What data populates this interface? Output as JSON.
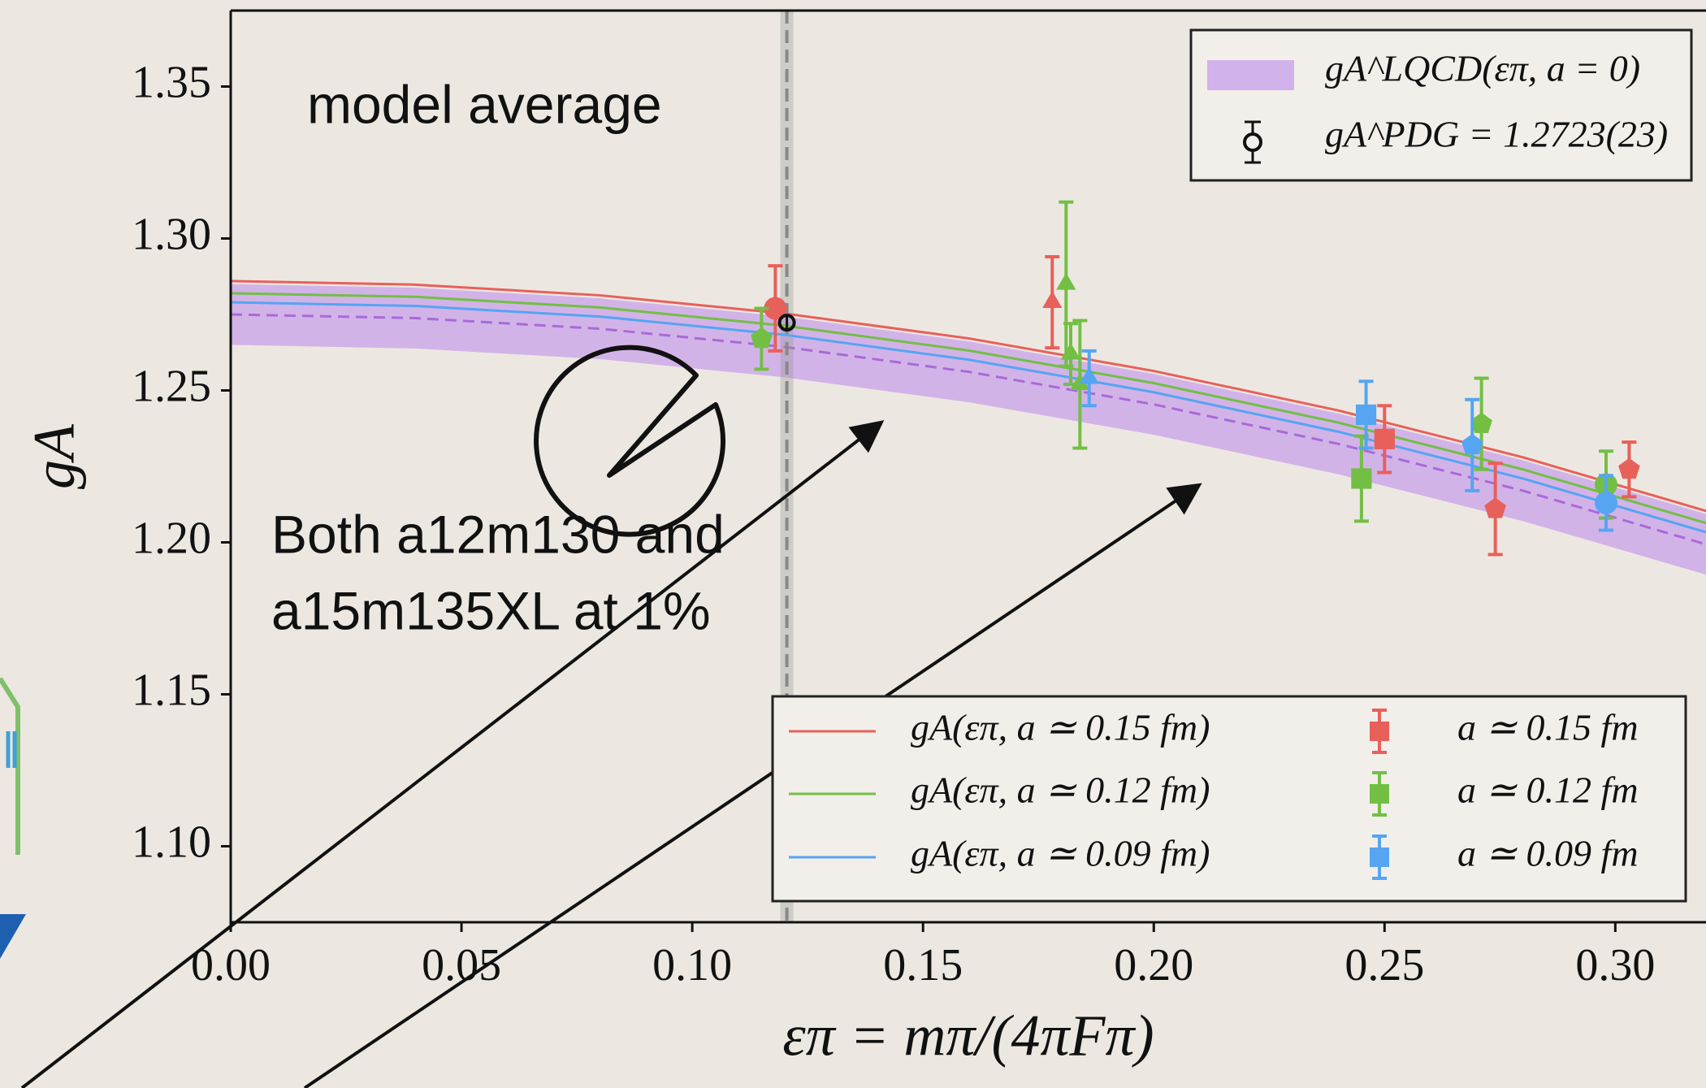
{
  "chart_data": {
    "type": "errorbar",
    "x_label": "επ = mπ/(4πFπ)",
    "y_label": "gA",
    "annotations": [
      "model average",
      "Both a12m130 and",
      "a15m135XL at 1%"
    ],
    "xlim": [
      0,
      0.32
    ],
    "ylim": [
      1.075,
      1.375
    ],
    "xticks": [
      {
        "value": 0,
        "label": "0.00"
      },
      0.05,
      {
        "value": 0.1,
        "label": "0.10"
      },
      0.15,
      {
        "value": 0.2,
        "label": "0.20"
      },
      0.25,
      {
        "value": 0.3,
        "label": "0.30"
      }
    ],
    "yticks": [
      {
        "value": 1.1,
        "label": "1.10"
      },
      1.15,
      {
        "value": 1.2,
        "label": "1.20"
      },
      1.25,
      {
        "value": 1.3,
        "label": "1.30"
      },
      1.35
    ],
    "band": {
      "name": "gA^LQCD(επ, a = 0)",
      "color": "#c9a2ea",
      "x": [
        0,
        0.04,
        0.08,
        0.12,
        0.16,
        0.2,
        0.24,
        0.28,
        0.32
      ],
      "center": [
        1.275,
        1.2738,
        1.2703,
        1.2643,
        1.2561,
        1.2454,
        1.2324,
        1.217,
        1.1992
      ],
      "lower": [
        1.265,
        1.2638,
        1.2603,
        1.2543,
        1.2461,
        1.2354,
        1.2224,
        1.207,
        1.1892
      ],
      "upper": [
        1.285,
        1.2838,
        1.2803,
        1.2743,
        1.2661,
        1.2554,
        1.2424,
        1.227,
        1.2092
      ]
    },
    "pdg": {
      "name": "gA^PDG = 1.2723(23)",
      "x": 0.1205,
      "value": 1.2723,
      "error": 0.0023
    },
    "curves": [
      {
        "name": "gA(επ, a ≃ 0.15 fm)",
        "color": "#e8605a",
        "x": [
          0,
          0.04,
          0.08,
          0.12,
          0.16,
          0.2,
          0.24,
          0.28,
          0.32
        ],
        "values": [
          1.286,
          1.2848,
          1.2813,
          1.2753,
          1.2671,
          1.2564,
          1.2434,
          1.228,
          1.2102
        ]
      },
      {
        "name": "gA(επ, a ≃ 0.12 fm)",
        "color": "#72bf44",
        "x": [
          0,
          0.04,
          0.08,
          0.12,
          0.16,
          0.2,
          0.24,
          0.28,
          0.32
        ],
        "values": [
          1.282,
          1.2808,
          1.2773,
          1.2713,
          1.2631,
          1.2524,
          1.2394,
          1.224,
          1.2062
        ]
      },
      {
        "name": "gA(επ, a ≃ 0.09 fm)",
        "color": "#55a5f2",
        "x": [
          0,
          0.04,
          0.08,
          0.12,
          0.16,
          0.2,
          0.24,
          0.28,
          0.32
        ],
        "values": [
          1.279,
          1.2778,
          1.2743,
          1.2683,
          1.2601,
          1.2494,
          1.2364,
          1.221,
          1.2032
        ]
      }
    ],
    "series": [
      {
        "name": "a ≃ 0.15 fm",
        "color": "#e8605a",
        "x": [
          0.118,
          0.178,
          0.25,
          0.274,
          0.303
        ],
        "values": [
          1.277,
          1.279,
          1.234,
          1.211,
          1.224
        ],
        "errors": [
          0.014,
          0.015,
          0.011,
          0.015,
          0.009
        ],
        "markers": [
          "circle",
          "triangle",
          "square",
          "pentagon",
          "pentagon"
        ]
      },
      {
        "name": "a ≃ 0.12 fm",
        "color": "#72bf44",
        "x": [
          0.115,
          0.181,
          0.182,
          0.184,
          0.245,
          0.271,
          0.298
        ],
        "values": [
          1.267,
          1.285,
          1.262,
          1.252,
          1.221,
          1.239,
          1.219
        ],
        "errors": [
          0.01,
          0.027,
          0.01,
          0.021,
          0.014,
          0.015,
          0.011
        ],
        "markers": [
          "pentagon",
          "triangle",
          "triangle",
          "triangle",
          "square",
          "pentagon",
          "circle"
        ]
      },
      {
        "name": "a ≃ 0.09 fm",
        "color": "#55a5f2",
        "x": [
          0.186,
          0.246,
          0.269,
          0.298
        ],
        "values": [
          1.254,
          1.242,
          1.232,
          1.213
        ],
        "errors": [
          0.009,
          0.011,
          0.015,
          0.009
        ],
        "markers": [
          "triangle",
          "square",
          "pentagon",
          "circle"
        ]
      }
    ]
  }
}
